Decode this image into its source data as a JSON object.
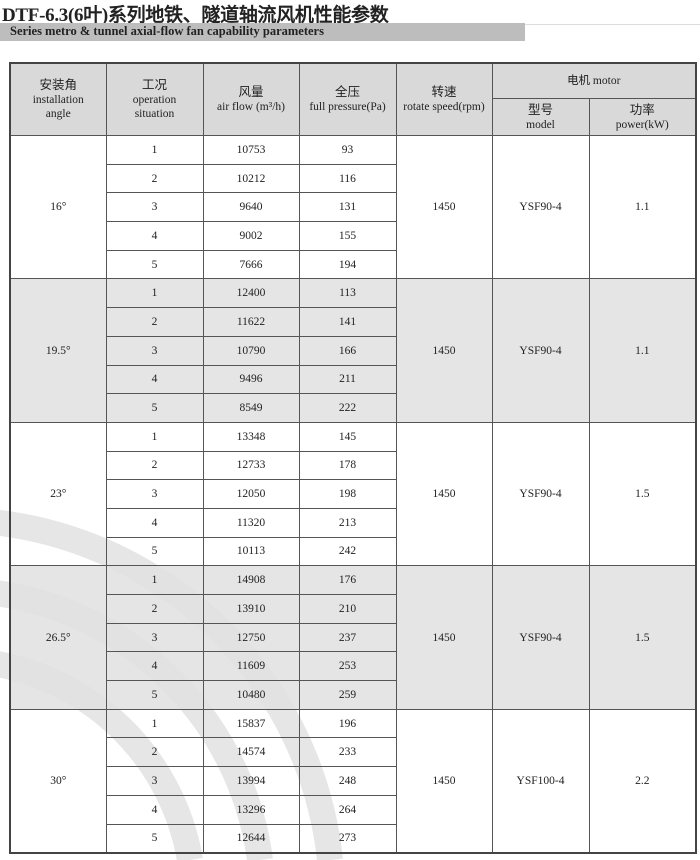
{
  "title": "DTF-6.3(6叶)系列地铁、隧道轴流风机性能参数",
  "subtitle": "Series metro & tunnel axial-flow fan capability parameters",
  "headers": {
    "angle": {
      "zh": "安装角",
      "en1": "installation",
      "en2": "angle"
    },
    "situation": {
      "zh": "工况",
      "en1": "operation",
      "en2": "situation"
    },
    "airflow": {
      "zh": "风量",
      "en": "air flow (m³/h)"
    },
    "pressure": {
      "zh": "全压",
      "en": "full pressure(Pa)"
    },
    "speed": {
      "zh": "转速",
      "en": "rotate speed(rpm)"
    },
    "motor": {
      "label": "电机 motor"
    },
    "model": {
      "zh": "型号",
      "en": "model"
    },
    "power": {
      "zh": "功率",
      "en": "power(kW)"
    }
  },
  "groups": [
    {
      "angle": "16°",
      "speed": "1450",
      "model": "YSF90-4",
      "power": "1.1",
      "rows": [
        {
          "sit": "1",
          "flow": "10753",
          "pres": "93"
        },
        {
          "sit": "2",
          "flow": "10212",
          "pres": "116"
        },
        {
          "sit": "3",
          "flow": "9640",
          "pres": "131"
        },
        {
          "sit": "4",
          "flow": "9002",
          "pres": "155"
        },
        {
          "sit": "5",
          "flow": "7666",
          "pres": "194"
        }
      ]
    },
    {
      "angle": "19.5°",
      "speed": "1450",
      "model": "YSF90-4",
      "power": "1.1",
      "rows": [
        {
          "sit": "1",
          "flow": "12400",
          "pres": "113"
        },
        {
          "sit": "2",
          "flow": "11622",
          "pres": "141"
        },
        {
          "sit": "3",
          "flow": "10790",
          "pres": "166"
        },
        {
          "sit": "4",
          "flow": "9496",
          "pres": "211"
        },
        {
          "sit": "5",
          "flow": "8549",
          "pres": "222"
        }
      ]
    },
    {
      "angle": "23°",
      "speed": "1450",
      "model": "YSF90-4",
      "power": "1.5",
      "rows": [
        {
          "sit": "1",
          "flow": "13348",
          "pres": "145"
        },
        {
          "sit": "2",
          "flow": "12733",
          "pres": "178"
        },
        {
          "sit": "3",
          "flow": "12050",
          "pres": "198"
        },
        {
          "sit": "4",
          "flow": "11320",
          "pres": "213"
        },
        {
          "sit": "5",
          "flow": "10113",
          "pres": "242"
        }
      ]
    },
    {
      "angle": "26.5°",
      "speed": "1450",
      "model": "YSF90-4",
      "power": "1.5",
      "rows": [
        {
          "sit": "1",
          "flow": "14908",
          "pres": "176"
        },
        {
          "sit": "2",
          "flow": "13910",
          "pres": "210"
        },
        {
          "sit": "3",
          "flow": "12750",
          "pres": "237"
        },
        {
          "sit": "4",
          "flow": "11609",
          "pres": "253"
        },
        {
          "sit": "5",
          "flow": "10480",
          "pres": "259"
        }
      ]
    },
    {
      "angle": "30°",
      "speed": "1450",
      "model": "YSF100-4",
      "power": "2.2",
      "rows": [
        {
          "sit": "1",
          "flow": "15837",
          "pres": "196"
        },
        {
          "sit": "2",
          "flow": "14574",
          "pres": "233"
        },
        {
          "sit": "3",
          "flow": "13994",
          "pres": "248"
        },
        {
          "sit": "4",
          "flow": "13296",
          "pres": "264"
        },
        {
          "sit": "5",
          "flow": "12644",
          "pres": "273"
        }
      ]
    }
  ]
}
